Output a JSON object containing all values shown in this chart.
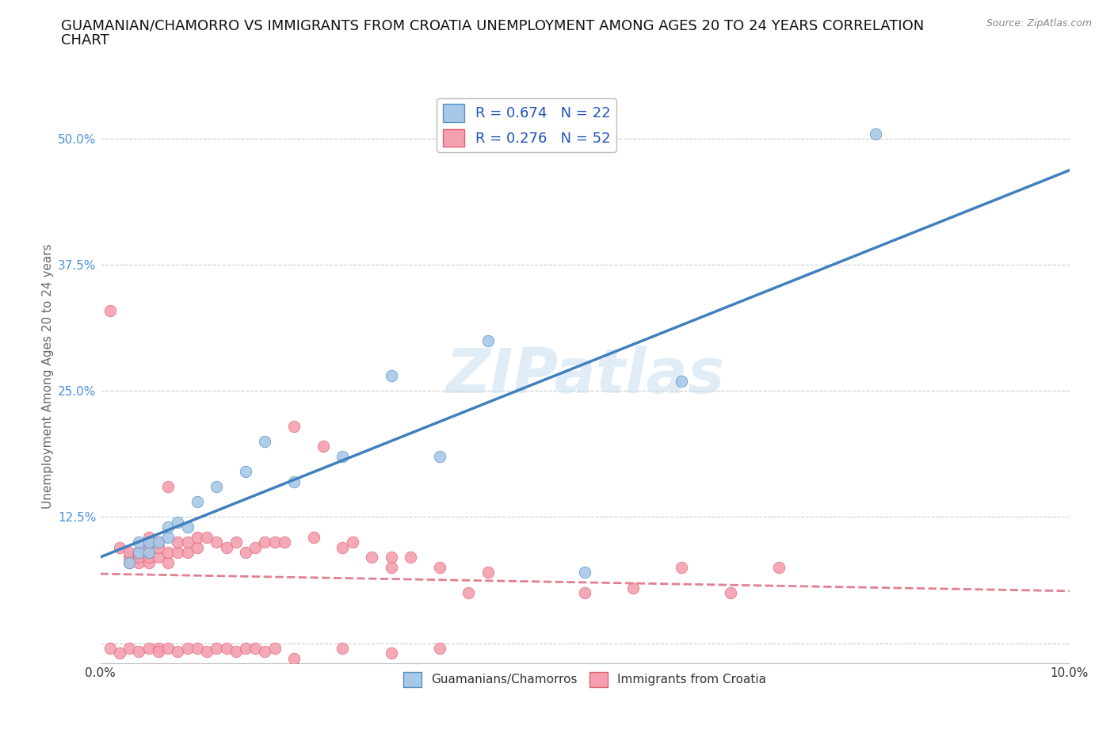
{
  "title_line1": "GUAMANIAN/CHAMORRO VS IMMIGRANTS FROM CROATIA UNEMPLOYMENT AMONG AGES 20 TO 24 YEARS CORRELATION",
  "title_line2": "CHART",
  "source": "Source: ZipAtlas.com",
  "ylabel": "Unemployment Among Ages 20 to 24 years",
  "xlim": [
    0.0,
    0.1
  ],
  "ylim": [
    -0.02,
    0.55
  ],
  "xticks": [
    0.0,
    0.02,
    0.04,
    0.06,
    0.08,
    0.1
  ],
  "xticklabels": [
    "0.0%",
    "",
    "",
    "",
    "",
    "10.0%"
  ],
  "ytick_positions": [
    0.0,
    0.125,
    0.25,
    0.375,
    0.5
  ],
  "yticklabels": [
    "",
    "12.5%",
    "25.0%",
    "37.5%",
    "50.0%"
  ],
  "guamanian_x": [
    0.003,
    0.004,
    0.004,
    0.005,
    0.005,
    0.006,
    0.007,
    0.007,
    0.008,
    0.009,
    0.01,
    0.012,
    0.015,
    0.017,
    0.02,
    0.025,
    0.03,
    0.035,
    0.04,
    0.05,
    0.06,
    0.08
  ],
  "guamanian_y": [
    0.08,
    0.09,
    0.1,
    0.09,
    0.1,
    0.1,
    0.105,
    0.115,
    0.12,
    0.115,
    0.14,
    0.155,
    0.17,
    0.2,
    0.16,
    0.185,
    0.265,
    0.185,
    0.3,
    0.07,
    0.26,
    0.505
  ],
  "croatia_x": [
    0.001,
    0.002,
    0.003,
    0.003,
    0.003,
    0.004,
    0.004,
    0.004,
    0.005,
    0.005,
    0.005,
    0.005,
    0.005,
    0.005,
    0.006,
    0.006,
    0.006,
    0.007,
    0.007,
    0.007,
    0.008,
    0.008,
    0.009,
    0.009,
    0.01,
    0.01,
    0.011,
    0.012,
    0.013,
    0.014,
    0.015,
    0.016,
    0.017,
    0.018,
    0.019,
    0.02,
    0.022,
    0.023,
    0.025,
    0.026,
    0.028,
    0.03,
    0.03,
    0.032,
    0.035,
    0.038,
    0.04,
    0.05,
    0.055,
    0.06,
    0.065,
    0.07
  ],
  "croatia_y": [
    0.33,
    0.095,
    0.08,
    0.085,
    0.09,
    0.08,
    0.085,
    0.09,
    0.08,
    0.085,
    0.09,
    0.095,
    0.1,
    0.105,
    0.085,
    0.095,
    0.1,
    0.08,
    0.09,
    0.155,
    0.09,
    0.1,
    0.09,
    0.1,
    0.095,
    0.105,
    0.105,
    0.1,
    0.095,
    0.1,
    0.09,
    0.095,
    0.1,
    0.1,
    0.1,
    0.215,
    0.105,
    0.195,
    0.095,
    0.1,
    0.085,
    0.075,
    0.085,
    0.085,
    0.075,
    0.05,
    0.07,
    0.05,
    0.055,
    0.075,
    0.05,
    0.075
  ],
  "croatia_below": [
    0.001,
    0.002,
    0.003,
    0.004,
    0.005,
    0.006,
    0.006,
    0.007,
    0.008,
    0.009,
    0.01,
    0.011,
    0.012,
    0.013,
    0.014,
    0.015,
    0.016,
    0.017,
    0.018,
    0.02,
    0.025,
    0.03,
    0.035
  ],
  "croatia_below_y": [
    -0.005,
    -0.01,
    -0.005,
    -0.008,
    -0.005,
    -0.005,
    -0.008,
    -0.005,
    -0.008,
    -0.005,
    -0.005,
    -0.008,
    -0.005,
    -0.005,
    -0.008,
    -0.005,
    -0.005,
    -0.008,
    -0.005,
    -0.015,
    -0.005,
    -0.01,
    -0.005
  ],
  "guamanian_color": "#a8c8e8",
  "croatia_color": "#f4a0b0",
  "guamanian_edge_color": "#5090c0",
  "croatia_edge_color": "#e06070",
  "guamanian_line_color": "#4080c0",
  "croatia_line_color": "#e08090",
  "r_guamanian": 0.674,
  "n_guamanian": 22,
  "r_croatia": 0.276,
  "n_croatia": 52,
  "watermark": "ZIPatlas",
  "background_color": "#ffffff",
  "grid_color": "#cccccc",
  "title_fontsize": 13,
  "label_fontsize": 11,
  "tick_fontsize": 11,
  "legend_fontsize": 13
}
